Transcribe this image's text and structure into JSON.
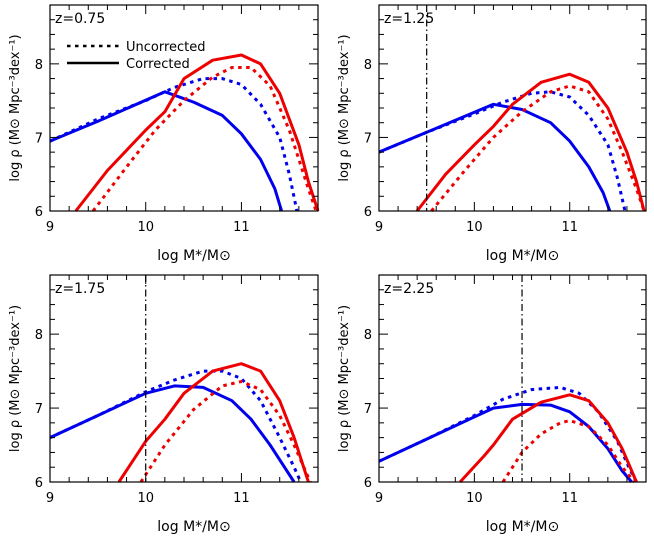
{
  "chart_data": [
    {
      "type": "line",
      "panel_label": "z=0.75",
      "xlabel": "log M*/M⊙",
      "ylabel": "log ρ (M⊙ Mpc⁻³dex⁻¹)",
      "xlim": [
        9,
        11.8
      ],
      "ylim": [
        6,
        8.8
      ],
      "x_ticks": [
        9,
        10,
        11
      ],
      "y_ticks": [
        6,
        7,
        8
      ],
      "legend": {
        "position": "top-left",
        "entries": [
          {
            "label": "Uncorrected",
            "style": "dotted"
          },
          {
            "label": "Corrected",
            "style": "solid"
          }
        ]
      },
      "vline": null,
      "series": [
        {
          "color": "#0000ee",
          "style": "solid",
          "x": [
            9.0,
            9.5,
            10.2,
            10.5,
            10.8,
            11.0,
            11.2,
            11.35,
            11.42
          ],
          "y": [
            6.95,
            7.22,
            7.62,
            7.48,
            7.3,
            7.05,
            6.7,
            6.3,
            6.0
          ]
        },
        {
          "color": "#0000ee",
          "style": "dotted",
          "x": [
            9.0,
            9.5,
            10.0,
            10.3,
            10.6,
            10.8,
            11.0,
            11.2,
            11.4,
            11.5,
            11.58
          ],
          "y": [
            6.95,
            7.25,
            7.5,
            7.68,
            7.8,
            7.8,
            7.72,
            7.45,
            7.0,
            6.5,
            6.0
          ]
        },
        {
          "color": "#ee0000",
          "style": "solid",
          "x": [
            9.27,
            9.6,
            10.0,
            10.2,
            10.4,
            10.7,
            11.0,
            11.2,
            11.4,
            11.6,
            11.7,
            11.8
          ],
          "y": [
            6.0,
            6.55,
            7.1,
            7.35,
            7.8,
            8.05,
            8.12,
            8.0,
            7.6,
            6.9,
            6.4,
            6.0
          ]
        },
        {
          "color": "#ee0000",
          "style": "dotted",
          "x": [
            9.45,
            9.8,
            10.1,
            10.4,
            10.7,
            10.9,
            11.1,
            11.3,
            11.5,
            11.6,
            11.7,
            11.78
          ],
          "y": [
            6.0,
            6.6,
            7.1,
            7.5,
            7.82,
            7.95,
            7.95,
            7.7,
            7.1,
            6.7,
            6.3,
            6.0
          ]
        }
      ]
    },
    {
      "type": "line",
      "panel_label": "z=1.25",
      "xlabel": "log M*/M⊙",
      "ylabel": "log ρ (M⊙ Mpc⁻³dex⁻¹)",
      "xlim": [
        9,
        11.8
      ],
      "ylim": [
        6,
        8.8
      ],
      "x_ticks": [
        9,
        10,
        11
      ],
      "y_ticks": [
        6,
        7,
        8
      ],
      "legend": null,
      "vline": 9.5,
      "series": [
        {
          "color": "#0000ee",
          "style": "solid",
          "x": [
            9.0,
            9.5,
            10.2,
            10.5,
            10.8,
            11.0,
            11.2,
            11.35,
            11.42
          ],
          "y": [
            6.8,
            7.07,
            7.45,
            7.38,
            7.2,
            6.95,
            6.6,
            6.25,
            6.0
          ]
        },
        {
          "color": "#0000ee",
          "style": "dotted",
          "x": [
            9.0,
            9.5,
            10.0,
            10.3,
            10.6,
            10.8,
            11.0,
            11.2,
            11.4,
            11.5,
            11.58
          ],
          "y": [
            6.8,
            7.07,
            7.32,
            7.48,
            7.6,
            7.62,
            7.55,
            7.3,
            6.9,
            6.45,
            6.0
          ]
        },
        {
          "color": "#ee0000",
          "style": "solid",
          "x": [
            9.4,
            9.7,
            10.0,
            10.2,
            10.4,
            10.7,
            11.0,
            11.2,
            11.4,
            11.6,
            11.7,
            11.78
          ],
          "y": [
            6.0,
            6.5,
            6.9,
            7.15,
            7.45,
            7.75,
            7.86,
            7.75,
            7.4,
            6.8,
            6.4,
            6.0
          ]
        },
        {
          "color": "#ee0000",
          "style": "dotted",
          "x": [
            9.55,
            9.9,
            10.2,
            10.5,
            10.8,
            11.0,
            11.2,
            11.4,
            11.55,
            11.7,
            11.78
          ],
          "y": [
            6.0,
            6.55,
            7.0,
            7.35,
            7.62,
            7.7,
            7.62,
            7.25,
            6.8,
            6.3,
            6.0
          ]
        }
      ]
    },
    {
      "type": "line",
      "panel_label": "z=1.75",
      "xlabel": "log M*/M⊙",
      "ylabel": "log ρ (M⊙ Mpc⁻³dex⁻¹)",
      "xlim": [
        9,
        11.8
      ],
      "ylim": [
        6,
        8.8
      ],
      "x_ticks": [
        9,
        10,
        11
      ],
      "y_ticks": [
        6,
        7,
        8
      ],
      "legend": null,
      "vline": 10.0,
      "series": [
        {
          "color": "#0000ee",
          "style": "solid",
          "x": [
            9.0,
            9.5,
            10.0,
            10.3,
            10.6,
            10.9,
            11.1,
            11.3,
            11.45,
            11.55
          ],
          "y": [
            6.6,
            6.9,
            7.2,
            7.3,
            7.28,
            7.1,
            6.85,
            6.5,
            6.2,
            6.0
          ]
        },
        {
          "color": "#0000ee",
          "style": "dotted",
          "x": [
            9.0,
            9.5,
            10.0,
            10.3,
            10.6,
            10.8,
            11.0,
            11.2,
            11.4,
            11.55,
            11.62
          ],
          "y": [
            6.6,
            6.9,
            7.22,
            7.38,
            7.5,
            7.5,
            7.4,
            7.1,
            6.6,
            6.2,
            6.0
          ]
        },
        {
          "color": "#ee0000",
          "style": "solid",
          "x": [
            9.72,
            10.0,
            10.2,
            10.4,
            10.7,
            11.0,
            11.2,
            11.4,
            11.55,
            11.7
          ],
          "y": [
            6.0,
            6.55,
            6.85,
            7.2,
            7.5,
            7.6,
            7.5,
            7.1,
            6.6,
            6.0
          ]
        },
        {
          "color": "#ee0000",
          "style": "dotted",
          "x": [
            9.95,
            10.2,
            10.5,
            10.8,
            11.0,
            11.2,
            11.4,
            11.55,
            11.72
          ],
          "y": [
            6.0,
            6.5,
            6.98,
            7.3,
            7.36,
            7.25,
            6.9,
            6.5,
            6.0
          ]
        }
      ]
    },
    {
      "type": "line",
      "panel_label": "z=2.25",
      "xlabel": "log M*/M⊙",
      "ylabel": "log ρ (M⊙ Mpc⁻³dex⁻¹)",
      "xlim": [
        9,
        11.8
      ],
      "ylim": [
        6,
        8.8
      ],
      "x_ticks": [
        9,
        10,
        11
      ],
      "y_ticks": [
        6,
        7,
        8
      ],
      "legend": null,
      "vline": 10.5,
      "series": [
        {
          "color": "#0000ee",
          "style": "solid",
          "x": [
            9.0,
            9.5,
            10.0,
            10.2,
            10.5,
            10.8,
            11.0,
            11.2,
            11.4,
            11.55,
            11.65
          ],
          "y": [
            6.28,
            6.58,
            6.88,
            7.0,
            7.05,
            7.04,
            6.95,
            6.75,
            6.45,
            6.15,
            6.0
          ]
        },
        {
          "color": "#0000ee",
          "style": "dotted",
          "x": [
            9.0,
            9.5,
            10.0,
            10.3,
            10.6,
            10.9,
            11.1,
            11.3,
            11.5,
            11.62,
            11.7
          ],
          "y": [
            6.28,
            6.58,
            6.9,
            7.12,
            7.25,
            7.28,
            7.2,
            6.95,
            6.55,
            6.2,
            6.0
          ]
        },
        {
          "color": "#ee0000",
          "style": "solid",
          "x": [
            9.85,
            10.1,
            10.2,
            10.4,
            10.7,
            11.0,
            11.2,
            11.4,
            11.55,
            11.7
          ],
          "y": [
            6.0,
            6.35,
            6.5,
            6.85,
            7.08,
            7.18,
            7.1,
            6.8,
            6.45,
            6.0
          ]
        },
        {
          "color": "#ee0000",
          "style": "dotted",
          "x": [
            10.3,
            10.5,
            10.7,
            10.9,
            11.0,
            11.2,
            11.4,
            11.55,
            11.68
          ],
          "y": [
            6.0,
            6.4,
            6.65,
            6.8,
            6.83,
            6.75,
            6.5,
            6.2,
            6.0
          ]
        }
      ]
    }
  ]
}
